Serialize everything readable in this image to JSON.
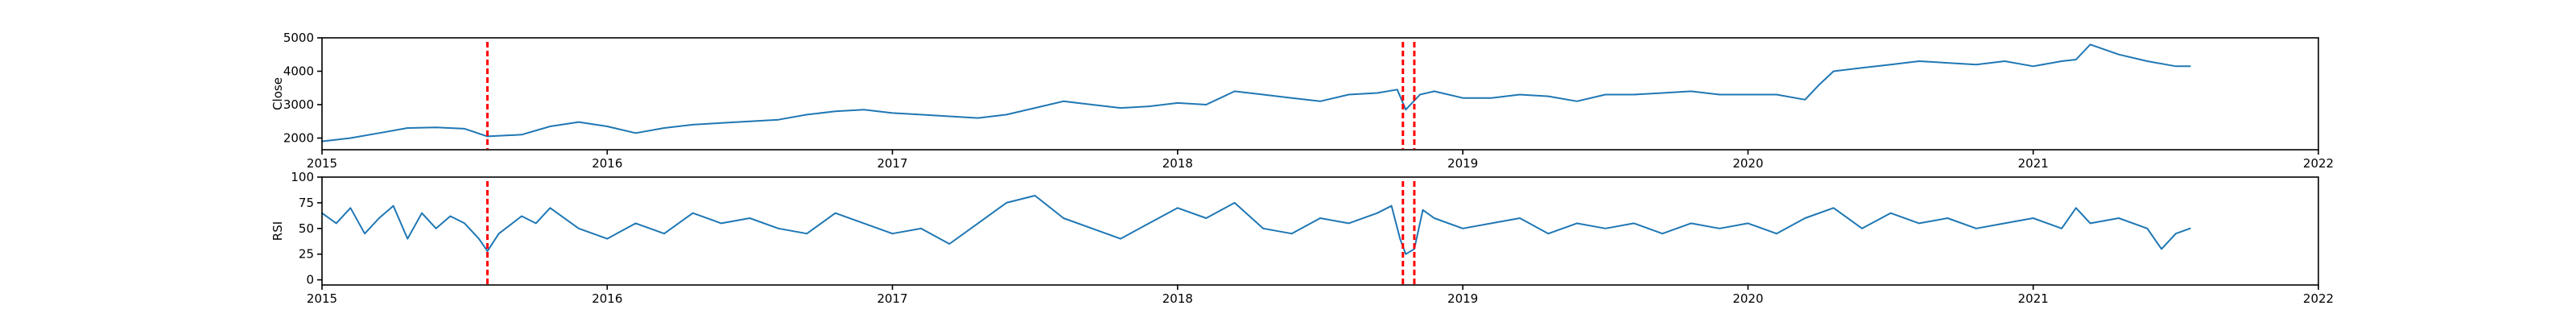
{
  "chart_data": [
    {
      "type": "line",
      "title": "",
      "xlabel": "",
      "ylabel": "Close",
      "xlim": [
        2015,
        2022
      ],
      "ylim": [
        1650,
        5000
      ],
      "x_ticks": [
        2015,
        2016,
        2017,
        2018,
        2019,
        2020,
        2021,
        2022
      ],
      "x_tick_labels": [
        "2015",
        "2016",
        "2017",
        "2018",
        "2019",
        "2020",
        "2021",
        "2022"
      ],
      "y_ticks": [
        2000,
        3000,
        4000,
        5000
      ],
      "y_tick_labels": [
        "2000",
        "3000",
        "4000",
        "5000"
      ],
      "grid": false,
      "series": [
        {
          "color": "#1f77b4",
          "x": [
            2015.0,
            2015.1,
            2015.2,
            2015.3,
            2015.4,
            2015.5,
            2015.58,
            2015.7,
            2015.8,
            2015.9,
            2016.0,
            2016.1,
            2016.2,
            2016.3,
            2016.4,
            2016.5,
            2016.6,
            2016.7,
            2016.8,
            2016.9,
            2017.0,
            2017.1,
            2017.2,
            2017.3,
            2017.4,
            2017.5,
            2017.6,
            2017.7,
            2017.8,
            2017.9,
            2018.0,
            2018.1,
            2018.2,
            2018.3,
            2018.4,
            2018.5,
            2018.6,
            2018.7,
            2018.77,
            2018.8,
            2018.85,
            2018.9,
            2019.0,
            2019.1,
            2019.2,
            2019.3,
            2019.4,
            2019.5,
            2019.6,
            2019.7,
            2019.8,
            2019.9,
            2020.0,
            2020.1,
            2020.2,
            2020.25,
            2020.3,
            2020.4,
            2020.5,
            2020.6,
            2020.7,
            2020.8,
            2020.9,
            2021.0,
            2021.1,
            2021.15,
            2021.2,
            2021.3,
            2021.4,
            2021.5,
            2021.55
          ],
          "y": [
            1900,
            2000,
            2150,
            2300,
            2320,
            2280,
            2050,
            2100,
            2350,
            2480,
            2350,
            2150,
            2300,
            2400,
            2450,
            2500,
            2550,
            2700,
            2800,
            2850,
            2750,
            2700,
            2650,
            2600,
            2700,
            2900,
            3100,
            3000,
            2900,
            2950,
            3050,
            3000,
            3400,
            3300,
            3200,
            3100,
            3300,
            3350,
            3450,
            2850,
            3300,
            3400,
            3200,
            3200,
            3300,
            3250,
            3100,
            3300,
            3300,
            3350,
            3400,
            3300,
            3300,
            3300,
            3150,
            3600,
            4000,
            4100,
            4200,
            4300,
            4250,
            4200,
            4300,
            4150,
            4300,
            4350,
            4800,
            4500,
            4300,
            4150,
            4150
          ]
        }
      ],
      "vlines": [
        {
          "x": 2015.58,
          "color": "#ff0000",
          "style": "dashed"
        },
        {
          "x": 2018.79,
          "color": "#ff0000",
          "style": "dashed"
        },
        {
          "x": 2018.83,
          "color": "#ff0000",
          "style": "dashed"
        }
      ]
    },
    {
      "type": "line",
      "title": "",
      "xlabel": "",
      "ylabel": "RSI",
      "xlim": [
        2015,
        2022
      ],
      "ylim": [
        -5,
        100
      ],
      "x_ticks": [
        2015,
        2016,
        2017,
        2018,
        2019,
        2020,
        2021,
        2022
      ],
      "x_tick_labels": [
        "2015",
        "2016",
        "2017",
        "2018",
        "2019",
        "2020",
        "2021",
        "2022"
      ],
      "y_ticks": [
        0,
        25,
        50,
        75,
        100
      ],
      "y_tick_labels": [
        "0",
        "25",
        "50",
        "75",
        "100"
      ],
      "grid": false,
      "series": [
        {
          "color": "#1f77b4",
          "x": [
            2015.0,
            2015.05,
            2015.1,
            2015.15,
            2015.2,
            2015.25,
            2015.3,
            2015.35,
            2015.4,
            2015.45,
            2015.5,
            2015.55,
            2015.58,
            2015.62,
            2015.7,
            2015.75,
            2015.8,
            2015.9,
            2016.0,
            2016.1,
            2016.2,
            2016.3,
            2016.4,
            2016.5,
            2016.6,
            2016.7,
            2016.8,
            2016.9,
            2017.0,
            2017.1,
            2017.2,
            2017.3,
            2017.4,
            2017.5,
            2017.6,
            2017.7,
            2017.8,
            2017.9,
            2018.0,
            2018.1,
            2018.2,
            2018.3,
            2018.4,
            2018.5,
            2018.6,
            2018.7,
            2018.75,
            2018.78,
            2018.8,
            2018.83,
            2018.86,
            2018.9,
            2019.0,
            2019.1,
            2019.2,
            2019.3,
            2019.4,
            2019.5,
            2019.6,
            2019.7,
            2019.8,
            2019.9,
            2020.0,
            2020.1,
            2020.2,
            2020.3,
            2020.4,
            2020.5,
            2020.6,
            2020.7,
            2020.8,
            2020.9,
            2021.0,
            2021.1,
            2021.15,
            2021.2,
            2021.3,
            2021.4,
            2021.45,
            2021.5,
            2021.55
          ],
          "y": [
            65,
            55,
            70,
            45,
            60,
            72,
            40,
            65,
            50,
            62,
            55,
            40,
            28,
            45,
            62,
            55,
            70,
            50,
            40,
            55,
            45,
            65,
            55,
            60,
            50,
            45,
            65,
            55,
            45,
            50,
            35,
            55,
            75,
            82,
            60,
            50,
            40,
            55,
            70,
            60,
            75,
            50,
            45,
            60,
            55,
            65,
            72,
            40,
            25,
            30,
            68,
            60,
            50,
            55,
            60,
            45,
            55,
            50,
            55,
            45,
            55,
            50,
            55,
            45,
            60,
            70,
            50,
            65,
            55,
            60,
            50,
            55,
            60,
            50,
            70,
            55,
            60,
            50,
            30,
            45,
            50
          ]
        }
      ],
      "vlines": [
        {
          "x": 2015.58,
          "color": "#ff0000",
          "style": "dashed"
        },
        {
          "x": 2018.79,
          "color": "#ff0000",
          "style": "dashed"
        },
        {
          "x": 2018.83,
          "color": "#ff0000",
          "style": "dashed"
        }
      ]
    }
  ]
}
